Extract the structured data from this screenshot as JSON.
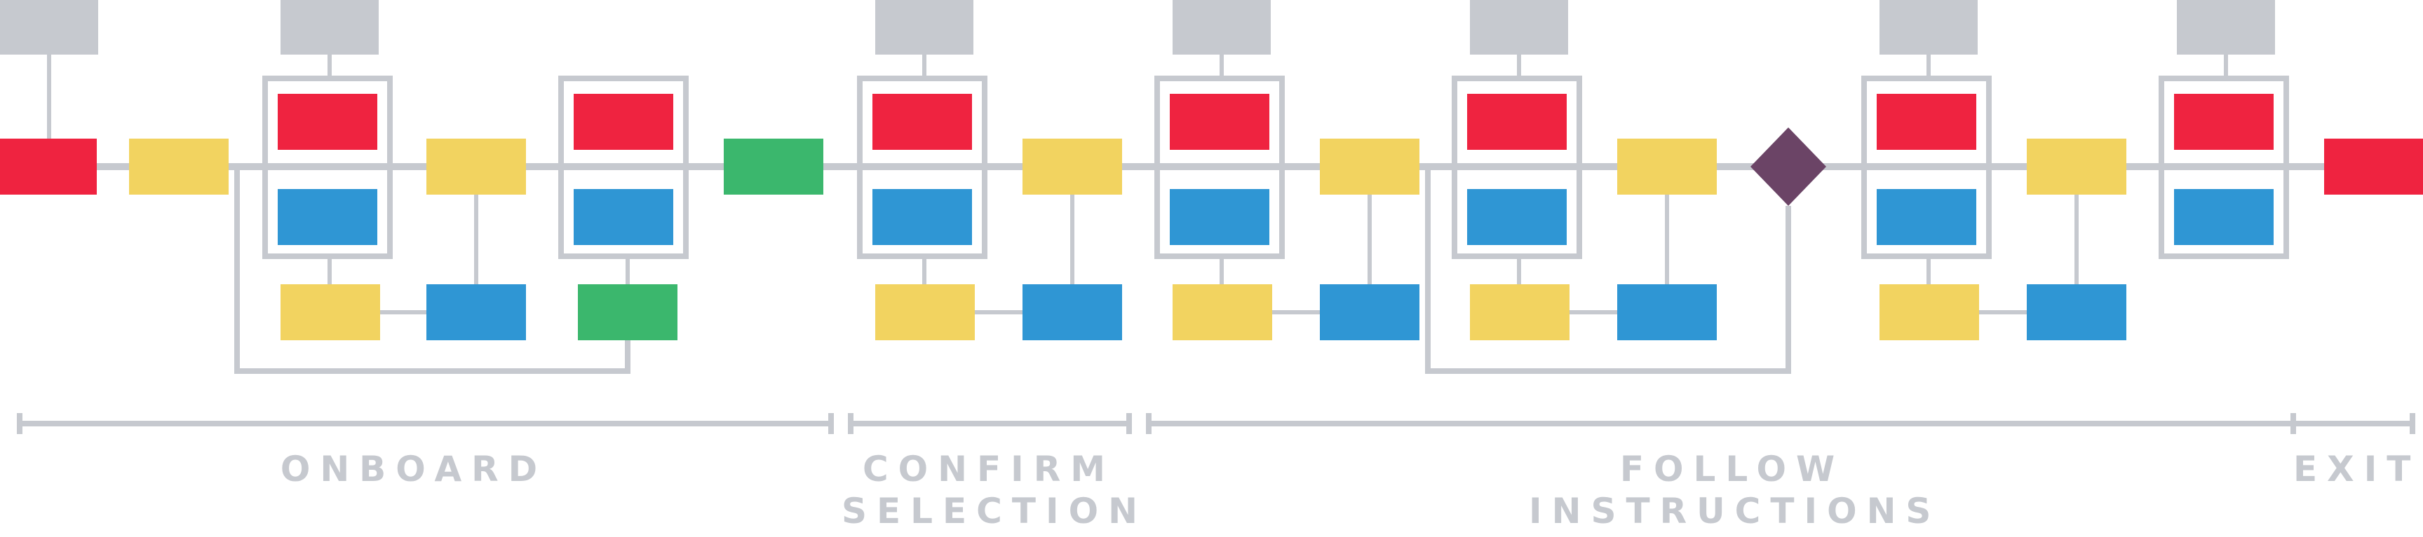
{
  "colors": {
    "line": "#c6c9cf",
    "gray": "#c6c9cf",
    "red": "#ef2340",
    "blue": "#2f96d4",
    "yellow": "#f2d360",
    "green": "#3bb76d",
    "purple": "#6b4466"
  },
  "phases": [
    {
      "id": "onboard",
      "lines": [
        "ONBOARD"
      ]
    },
    {
      "id": "confirm",
      "lines": [
        "CONFIRM",
        "SELECTION"
      ]
    },
    {
      "id": "follow",
      "lines": [
        "FOLLOW",
        "INSTRUCTIONS"
      ]
    },
    {
      "id": "exit",
      "lines": [
        "EXIT"
      ]
    }
  ]
}
